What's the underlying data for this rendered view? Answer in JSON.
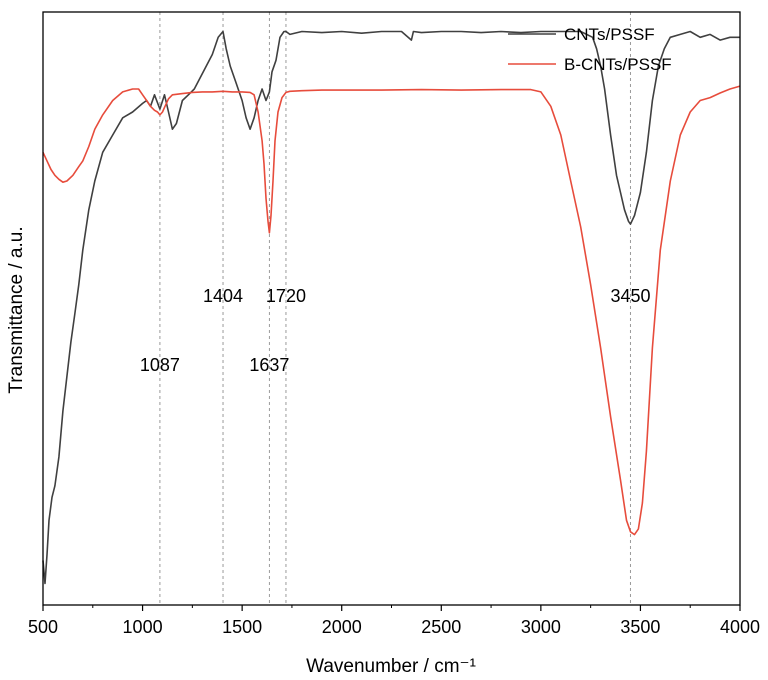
{
  "chart_data": {
    "type": "line",
    "title": "",
    "xlabel": "Wavenumber / cm⁻¹",
    "ylabel": "Transmittance / a.u.",
    "xlim": [
      500,
      4000
    ],
    "ylim": [
      0,
      100
    ],
    "xticks": [
      "500",
      "1000",
      "1500",
      "2000",
      "2500",
      "3000",
      "3500",
      "4000"
    ],
    "yticks_shown": false,
    "grid": false,
    "legend_position": "top-right",
    "reference_lines": [
      1087,
      1404,
      1637,
      1720,
      3450
    ],
    "annotations": [
      {
        "text": "1087",
        "x": 1087,
        "y": 39
      },
      {
        "text": "1404",
        "x": 1404,
        "y": 51
      },
      {
        "text": "1637",
        "x": 1637,
        "y": 39
      },
      {
        "text": "1720",
        "x": 1720,
        "y": 51
      },
      {
        "text": "3450",
        "x": 3450,
        "y": 51
      }
    ],
    "series": [
      {
        "name": "CNTs/PSSF",
        "color": "#404040",
        "x": [
          500,
          510,
          520,
          530,
          545,
          560,
          580,
          600,
          620,
          640,
          660,
          680,
          700,
          730,
          760,
          800,
          850,
          900,
          950,
          1000,
          1020,
          1040,
          1060,
          1087,
          1110,
          1130,
          1150,
          1170,
          1200,
          1230,
          1260,
          1290,
          1320,
          1350,
          1380,
          1404,
          1420,
          1440,
          1470,
          1500,
          1520,
          1540,
          1560,
          1580,
          1600,
          1620,
          1637,
          1650,
          1670,
          1690,
          1710,
          1720,
          1740,
          1800,
          1900,
          2000,
          2100,
          2200,
          2300,
          2350,
          2360,
          2400,
          2500,
          2600,
          2700,
          2800,
          2900,
          3000,
          3100,
          3200,
          3260,
          3280,
          3300,
          3320,
          3350,
          3380,
          3400,
          3420,
          3440,
          3450,
          3470,
          3500,
          3530,
          3560,
          3590,
          3620,
          3650,
          3700,
          3750,
          3800,
          3850,
          3900,
          3950,
          4000
        ],
        "values": [
          6,
          2,
          7,
          13,
          17,
          19,
          24,
          32,
          38,
          44,
          49,
          54,
          60,
          67,
          72,
          77,
          80,
          83,
          84,
          85.5,
          86,
          85,
          87,
          84.5,
          87,
          84,
          81,
          82,
          86,
          87,
          88,
          90,
          92,
          94,
          97,
          98,
          95,
          92,
          89,
          86,
          83,
          81,
          83,
          86,
          88,
          86,
          87.5,
          91,
          93,
          97,
          98,
          98,
          97.5,
          98,
          97.8,
          98,
          97.7,
          98,
          98,
          96.5,
          98,
          97.8,
          98,
          98,
          97.8,
          98,
          97.8,
          98,
          98,
          98,
          97,
          95,
          92,
          88,
          80,
          73,
          70,
          67,
          65,
          64.5,
          66,
          70,
          77,
          86,
          92,
          95,
          97,
          97.5,
          98,
          97,
          97.5,
          96.5,
          97,
          97
        ]
      },
      {
        "name": "B-CNTs/PSSF",
        "color": "#e74c3c",
        "x": [
          500,
          520,
          540,
          560,
          580,
          600,
          620,
          650,
          680,
          700,
          730,
          760,
          800,
          850,
          900,
          950,
          980,
          1000,
          1020,
          1040,
          1060,
          1075,
          1087,
          1100,
          1110,
          1130,
          1150,
          1200,
          1250,
          1300,
          1350,
          1404,
          1450,
          1500,
          1540,
          1560,
          1580,
          1600,
          1610,
          1620,
          1630,
          1637,
          1645,
          1655,
          1665,
          1680,
          1700,
          1720,
          1740,
          1800,
          1900,
          2000,
          2200,
          2400,
          2600,
          2800,
          2900,
          2950,
          3000,
          3050,
          3100,
          3150,
          3200,
          3250,
          3300,
          3350,
          3400,
          3430,
          3450,
          3470,
          3490,
          3510,
          3530,
          3560,
          3600,
          3650,
          3700,
          3750,
          3800,
          3850,
          3900,
          3950,
          4000
        ],
        "values": [
          77,
          75.5,
          74,
          73,
          72.3,
          71.8,
          72,
          73,
          74.5,
          75.5,
          78,
          81,
          83.5,
          86,
          87.5,
          88,
          88,
          87,
          86,
          85,
          84.3,
          84,
          83.5,
          84,
          84.8,
          86.3,
          87,
          87.2,
          87.4,
          87.5,
          87.5,
          87.6,
          87.5,
          87.5,
          87.4,
          87,
          84,
          79,
          75,
          69,
          65,
          63,
          66,
          72,
          79,
          84,
          86.5,
          87.4,
          87.6,
          87.7,
          87.8,
          87.8,
          87.8,
          87.9,
          87.8,
          87.9,
          87.9,
          87.9,
          87.5,
          85,
          80,
          72,
          64,
          54,
          43,
          31,
          20,
          13,
          11,
          10.5,
          11.5,
          16,
          25,
          43,
          60,
          72,
          80,
          84,
          86,
          86.5,
          87.3,
          88,
          88.5
        ]
      }
    ]
  }
}
